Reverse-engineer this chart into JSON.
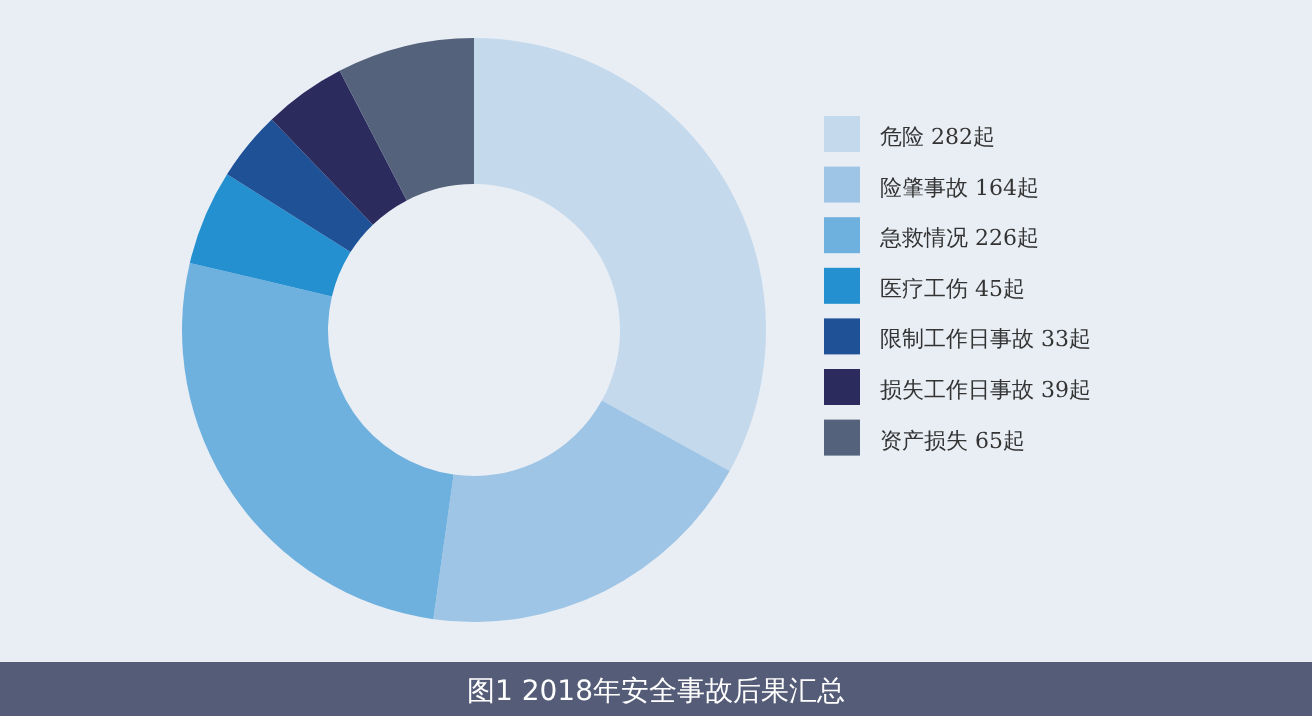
{
  "chart_data": {
    "type": "donut",
    "title": "图1 2018年安全事故后果汇总",
    "categories": [
      "危险",
      "险肇事故",
      "急救情况",
      "医疗工伤",
      "限制工作日事故",
      "损失工作日事故",
      "资产损失"
    ],
    "values": [
      282,
      164,
      226,
      45,
      33,
      39,
      65
    ],
    "value_labels": [
      "282起",
      "164起",
      "226起",
      "45起",
      "33起",
      "39起",
      "65起"
    ],
    "colors": [
      "#c5d9ed",
      "#9fc5e6",
      "#6fb1de",
      "#2590d0",
      "#1f5196",
      "#2b2b5e",
      "#55627c"
    ],
    "legend": "right"
  }
}
